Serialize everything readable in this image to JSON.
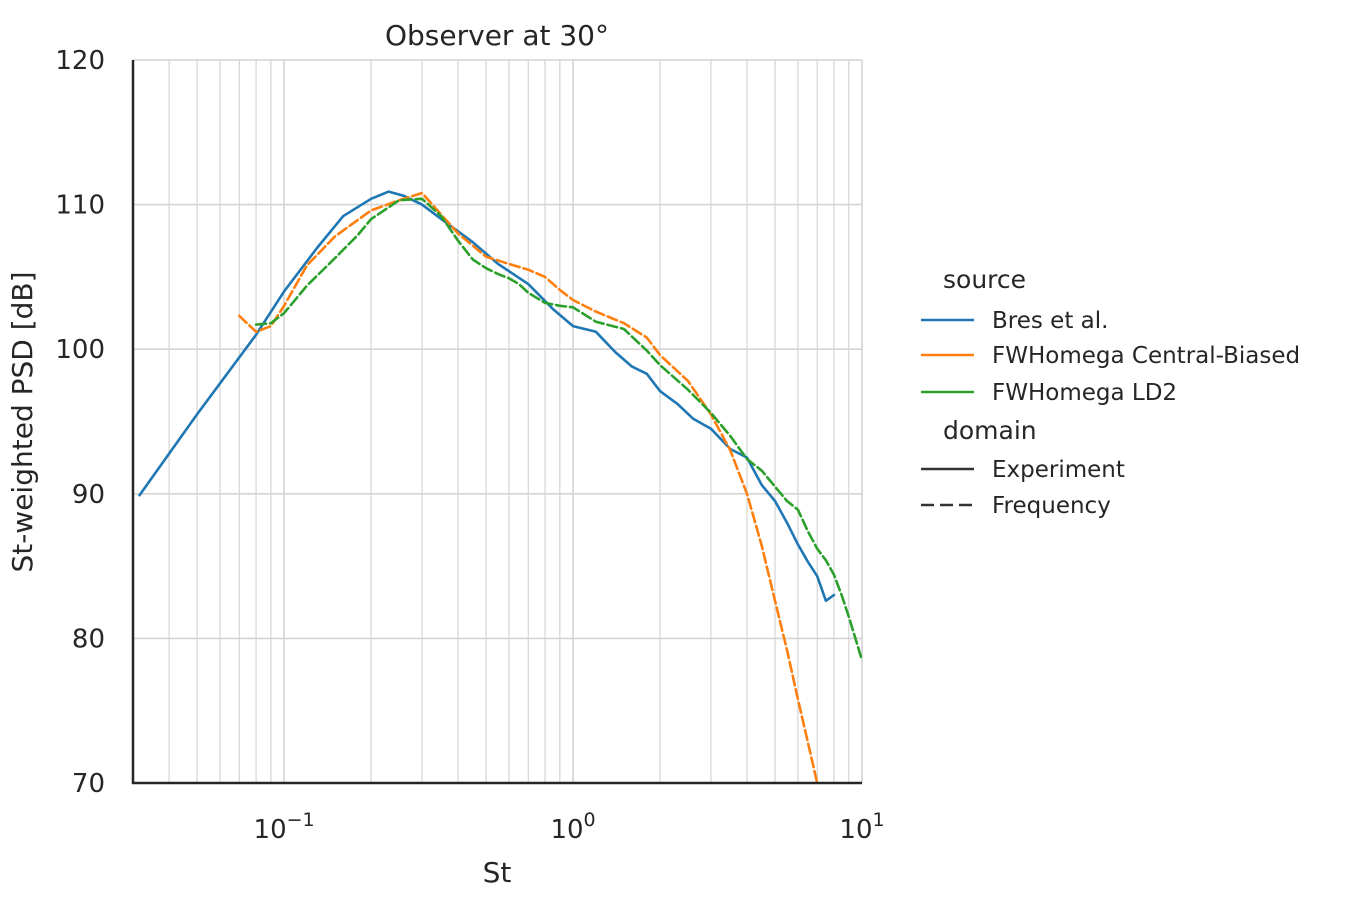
{
  "chart_data": {
    "type": "line",
    "title": "Observer at 30°",
    "xlabel": "St",
    "ylabel": "St-weighted PSD [dB]",
    "xscale": "log",
    "xlim": [
      0.03,
      10
    ],
    "ylim": [
      70,
      120
    ],
    "yticks": [
      70,
      80,
      90,
      100,
      110,
      120
    ],
    "xticks": [
      {
        "value": 0.1,
        "base": "10",
        "exp": "−1"
      },
      {
        "value": 1,
        "base": "10",
        "exp": "0"
      },
      {
        "value": 10,
        "base": "10",
        "exp": "1"
      }
    ],
    "grid": true,
    "legend": {
      "placement": "right",
      "hue_title": "source",
      "style_title": "domain",
      "hue_entries": [
        "Bres et al.",
        "FWHomega Central-Biased",
        "FWHomega LD2"
      ],
      "style_entries": [
        "Experiment",
        "Frequency"
      ]
    },
    "series": [
      {
        "name": "Bres et al.",
        "domain": "Experiment",
        "color": "#1f77b4",
        "dash": "solid",
        "x": [
          0.0316,
          0.05,
          0.08,
          0.1,
          0.13,
          0.16,
          0.2,
          0.23,
          0.26,
          0.3,
          0.35,
          0.45,
          0.55,
          0.7,
          0.85,
          1.0,
          1.2,
          1.4,
          1.6,
          1.8,
          2.0,
          2.3,
          2.6,
          3.0,
          3.5,
          4.0,
          4.5,
          5.0,
          5.5,
          6.0,
          6.5,
          7.0,
          7.5,
          8.0
        ],
        "y": [
          89.9,
          95.5,
          101.0,
          104.0,
          107.0,
          109.2,
          110.4,
          110.9,
          110.6,
          110.0,
          109.0,
          107.4,
          105.9,
          104.5,
          102.8,
          101.6,
          101.2,
          99.8,
          98.8,
          98.3,
          97.1,
          96.2,
          95.2,
          94.5,
          93.1,
          92.5,
          90.6,
          89.5,
          88.0,
          86.5,
          85.3,
          84.3,
          82.6,
          83.0
        ]
      },
      {
        "name": "FWHomega Central-Biased",
        "domain": "Frequency",
        "color": "#ff7f0e",
        "dash": "dashed",
        "x": [
          0.07,
          0.08,
          0.09,
          0.1,
          0.12,
          0.15,
          0.2,
          0.25,
          0.3,
          0.35,
          0.4,
          0.5,
          0.6,
          0.7,
          0.8,
          0.9,
          1.0,
          1.2,
          1.5,
          1.8,
          2.0,
          2.5,
          3.0,
          3.5,
          4.0,
          4.5,
          5.0,
          5.5,
          6.0,
          6.5,
          7.0
        ],
        "y": [
          102.3,
          101.2,
          101.6,
          103.0,
          105.8,
          107.8,
          109.6,
          110.3,
          110.8,
          109.3,
          108.0,
          106.4,
          105.9,
          105.5,
          105.0,
          104.1,
          103.4,
          102.6,
          101.8,
          100.8,
          99.6,
          97.8,
          95.5,
          93.0,
          90.0,
          86.4,
          82.6,
          79.2,
          75.8,
          72.8,
          70.0
        ]
      },
      {
        "name": "FWHomega LD2",
        "domain": "Frequency",
        "color": "#2ca02c",
        "dash": "dashed",
        "x": [
          0.08,
          0.09,
          0.1,
          0.12,
          0.15,
          0.18,
          0.2,
          0.25,
          0.3,
          0.35,
          0.4,
          0.45,
          0.5,
          0.55,
          0.6,
          0.65,
          0.7,
          0.8,
          0.9,
          1.0,
          1.2,
          1.5,
          1.8,
          2.0,
          2.5,
          3.0,
          3.5,
          4.0,
          4.5,
          5.0,
          5.5,
          6.0,
          6.5,
          7.0,
          7.5,
          8.0,
          8.5,
          9.0,
          10.0
        ],
        "y": [
          101.7,
          101.8,
          102.5,
          104.4,
          106.3,
          107.9,
          109.0,
          110.3,
          110.4,
          109.2,
          107.5,
          106.2,
          105.6,
          105.2,
          104.9,
          104.5,
          103.9,
          103.2,
          103.0,
          102.9,
          101.9,
          101.4,
          99.9,
          98.9,
          97.2,
          95.6,
          94.0,
          92.4,
          91.6,
          90.5,
          89.5,
          88.9,
          87.4,
          86.2,
          85.4,
          84.4,
          83.0,
          81.5,
          78.5
        ]
      }
    ]
  }
}
